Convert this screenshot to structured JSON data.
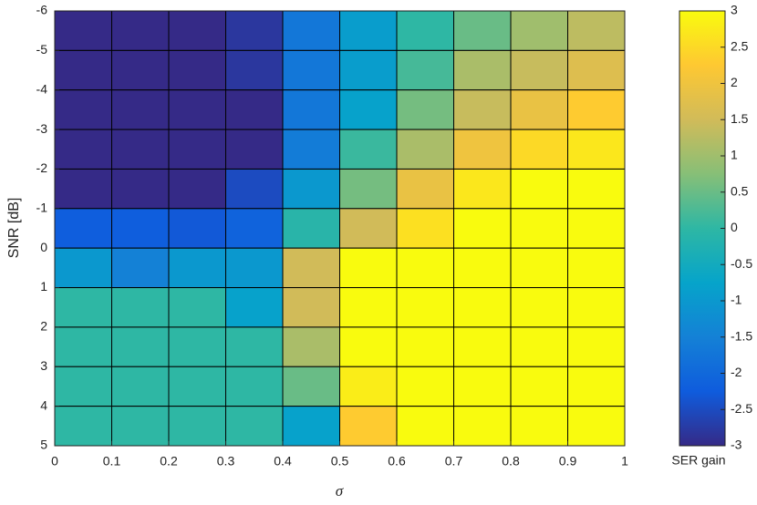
{
  "chart_data": {
    "type": "heatmap",
    "xlabel": "σ",
    "ylabel": "SNR [dB]",
    "colorbar_label": "SER gain",
    "xlim": [
      0,
      1
    ],
    "xticks": [
      0,
      0.1,
      0.2,
      0.3,
      0.4,
      0.5,
      0.6,
      0.7,
      0.8,
      0.9,
      1
    ],
    "ylim": [
      -6,
      5
    ],
    "y_direction": "reverse",
    "yticks": [
      -6,
      -5,
      -4,
      -3,
      -2,
      -1,
      0,
      1,
      2,
      3,
      4,
      5
    ],
    "clim": [
      -3,
      3
    ],
    "cticks": [
      -3,
      -2.5,
      -2,
      -1.5,
      -1,
      -0.5,
      0,
      0.5,
      1,
      1.5,
      2,
      2.5,
      3
    ],
    "colormap": "parula",
    "values": [
      [
        -3,
        -3,
        -3,
        -2.8,
        -1.7,
        -0.9,
        0,
        0.5,
        1.0,
        1.3
      ],
      [
        -3,
        -3,
        -3,
        -2.8,
        -1.7,
        -0.9,
        0.2,
        1.1,
        1.4,
        1.7
      ],
      [
        -3,
        -3,
        -3,
        -3,
        -1.7,
        -0.8,
        0.6,
        1.4,
        1.9,
        2.3
      ],
      [
        -3,
        -3,
        -3,
        -3,
        -1.6,
        0.1,
        1.1,
        2.0,
        2.5,
        2.7
      ],
      [
        -3,
        -3,
        -3,
        -2.5,
        -1.0,
        0.6,
        1.9,
        2.7,
        3,
        3
      ],
      [
        -2.2,
        -2.2,
        -2.3,
        -2.1,
        -0.1,
        1.5,
        2.6,
        3,
        3,
        3
      ],
      [
        -1.0,
        -1.5,
        -1.0,
        -1.0,
        1.5,
        3,
        3,
        3,
        3,
        3
      ],
      [
        0,
        0,
        0,
        -0.8,
        1.5,
        3,
        3,
        3,
        3,
        3
      ],
      [
        0,
        0,
        0,
        0,
        1.1,
        3,
        3,
        3,
        3,
        3
      ],
      [
        0,
        0,
        0,
        0,
        0.5,
        2.8,
        3,
        3,
        3,
        3
      ],
      [
        0,
        0,
        0,
        0,
        -0.8,
        2.3,
        3,
        3,
        3,
        3
      ]
    ]
  }
}
